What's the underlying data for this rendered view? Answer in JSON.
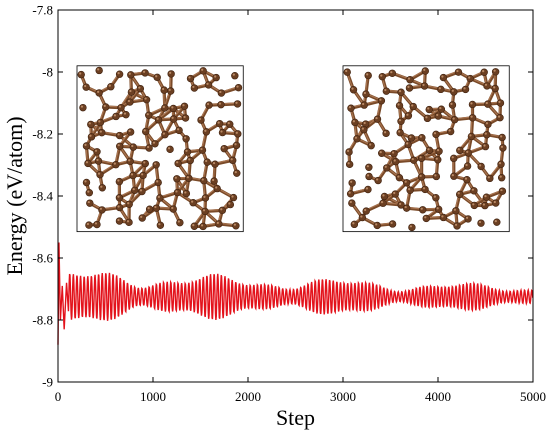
{
  "chart_data": {
    "type": "line",
    "title": "",
    "xlabel": "Step",
    "ylabel": "Energy (eV/atom)",
    "xlim": [
      0,
      5000
    ],
    "ylim": [
      -9,
      -7.8
    ],
    "x_ticks": [
      0,
      1000,
      2000,
      3000,
      4000,
      5000
    ],
    "x_tick_labels": [
      "0",
      "1000",
      "2000",
      "3000",
      "4000",
      "5000"
    ],
    "y_ticks": [
      -7.8,
      -8,
      -8.2,
      -8.4,
      -8.6,
      -8.8,
      -9
    ],
    "y_tick_labels": [
      "-7.8",
      "-8",
      "-8.2",
      "-8.4",
      "-8.6",
      "-8.8",
      "-9"
    ],
    "grid": false,
    "series": [
      {
        "color": "#e3121b",
        "mean": -8.725,
        "initial_spike": [
          -8.88,
          -8.55
        ],
        "oscillation_period_steps": 38,
        "amplitude_start": 0.06,
        "amplitude_end": 0.025
      }
    ],
    "insets": [
      {
        "description_icon": "carbon-network-structure-initial",
        "x_range": [
          200,
          1950
        ],
        "y_range": [
          -8.515,
          -7.98
        ]
      },
      {
        "description_icon": "carbon-network-structure-final",
        "x_range": [
          3000,
          4750
        ],
        "y_range": [
          -8.515,
          -7.98
        ]
      }
    ]
  }
}
